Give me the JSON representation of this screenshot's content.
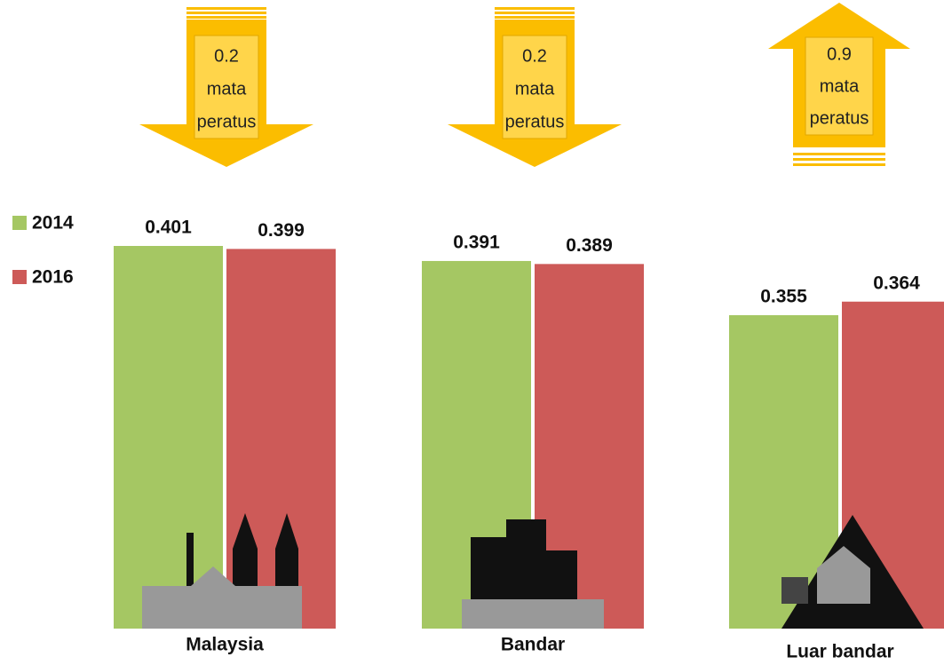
{
  "chart_data": {
    "type": "bar",
    "categories": [
      "Malaysia",
      "Bandar",
      "Luar bandar"
    ],
    "series": [
      {
        "name": "2014",
        "color": "#a5c763",
        "values": [
          0.401,
          0.391,
          0.355
        ]
      },
      {
        "name": "2016",
        "color": "#cd5a58",
        "values": [
          0.399,
          0.389,
          0.364
        ]
      }
    ],
    "annotations": [
      {
        "lines": [
          "0.2",
          "mata",
          "peratus"
        ],
        "direction": "down",
        "color": "#fbbd00"
      },
      {
        "lines": [
          "0.2",
          "mata",
          "peratus"
        ],
        "direction": "down",
        "color": "#fbbd00"
      },
      {
        "lines": [
          "0.9",
          "mata",
          "peratus"
        ],
        "direction": "up",
        "color": "#fbbd00"
      }
    ],
    "legend": "left"
  }
}
